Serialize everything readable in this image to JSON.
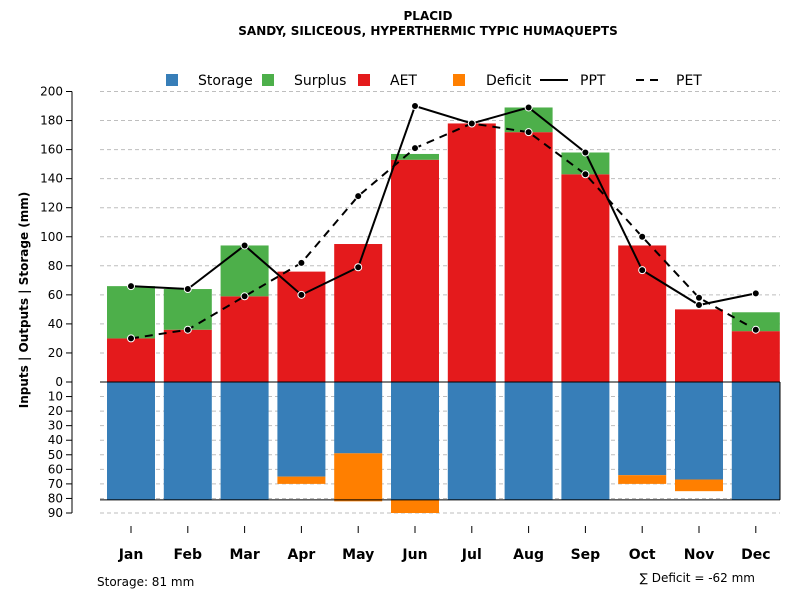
{
  "chart_data": {
    "type": "bar",
    "title": "PLACID",
    "subtitle": "SANDY, SILICEOUS, HYPERTHERMIC TYPIC HUMAQUEPTS",
    "ylabel": "Inputs | Outputs | Storage    (mm)",
    "categories": [
      "Jan",
      "Feb",
      "Mar",
      "Apr",
      "May",
      "Jun",
      "Jul",
      "Aug",
      "Sep",
      "Oct",
      "Nov",
      "Dec"
    ],
    "upper_ylim": [
      0,
      200
    ],
    "upper_ticks": [
      0,
      20,
      40,
      60,
      80,
      100,
      120,
      140,
      160,
      180,
      200
    ],
    "lower_ylim": [
      0,
      90
    ],
    "lower_ticks": [
      10,
      20,
      30,
      40,
      50,
      60,
      70,
      80,
      90
    ],
    "legend": [
      "Storage",
      "Surplus",
      "AET",
      "Deficit",
      "PPT",
      "PET"
    ],
    "colors": {
      "storage": "#377EB8",
      "surplus": "#4DAF4A",
      "aet": "#E41A1C",
      "deficit": "#FF7F00",
      "line": "#000000",
      "grid": "#BEBEBE"
    },
    "series": [
      {
        "name": "AET",
        "values": [
          30,
          36,
          59,
          76,
          95,
          153,
          178,
          172,
          143,
          94,
          50,
          35
        ]
      },
      {
        "name": "Surplus",
        "values": [
          36,
          28,
          35,
          0,
          0,
          4,
          0,
          17,
          15,
          0,
          0,
          13
        ]
      },
      {
        "name": "PPT",
        "values": [
          66,
          64,
          94,
          60,
          79,
          190,
          178,
          189,
          158,
          77,
          53,
          61
        ]
      },
      {
        "name": "PET",
        "values": [
          30,
          36,
          59,
          82,
          128,
          161,
          178,
          172,
          143,
          100,
          58,
          36
        ]
      },
      {
        "name": "Storage",
        "values": [
          81,
          81,
          81,
          65,
          49,
          81,
          81,
          81,
          81,
          64,
          67,
          81
        ]
      },
      {
        "name": "Deficit",
        "values": [
          0,
          0,
          0,
          5,
          33,
          9,
          0,
          0,
          0,
          6,
          8,
          0
        ]
      }
    ],
    "storage_note": "Storage: 81 mm",
    "deficit_note": "∑ Deficit = -62 mm"
  }
}
